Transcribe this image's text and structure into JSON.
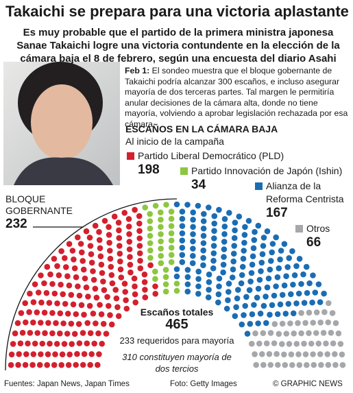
{
  "header": {
    "title": "Takaichi se prepara para una victoria aplastante",
    "subtitle": "Es muy probable que el partido de la primera ministra japonesa Sanae Takaichi logre una victoria contundente en la elección de la cámara baja el 8 de febrero, según una encuesta del diario Asahi"
  },
  "note": {
    "date": "Feb 1:",
    "text": "El sondeo muestra que el bloque gobernante de Takaichi podría alcanzar 300 escaños, e incluso asegurar mayoría de dos terceras partes. Tal margen le permitiría anular decisiones de la cámara alta, donde no tiene mayoría, volviendo a aprobar legislación rechazada por esa cámara"
  },
  "chart_data": {
    "type": "parliament",
    "title": "ESCAÑOS EN LA CÁMARA BAJA",
    "subtitle": "Al inicio de la campaña",
    "categories": [
      "Partido Liberal Democrático (PLD)",
      "Partido Innovación de Japón (Ishin)",
      "Alianza de la Reforma Centrista",
      "Otros"
    ],
    "values": [
      198,
      34,
      167,
      66
    ],
    "colors": [
      "#d3202e",
      "#8dc63f",
      "#1b6db3",
      "#a5a7aa"
    ],
    "bloc": {
      "label": "BLOQUE GOBERNANTE",
      "value": 232
    },
    "total": {
      "label": "Escaños totales",
      "value": 465
    },
    "annotations": [
      "233 requeridos para mayoría",
      "310 constituyen mayoría de dos tercios"
    ]
  },
  "footer": {
    "sources": "Fuentes: Japan News, Japan Times",
    "photo": "Foto: Getty Images",
    "copyright": "© GRAPHIC NEWS"
  }
}
